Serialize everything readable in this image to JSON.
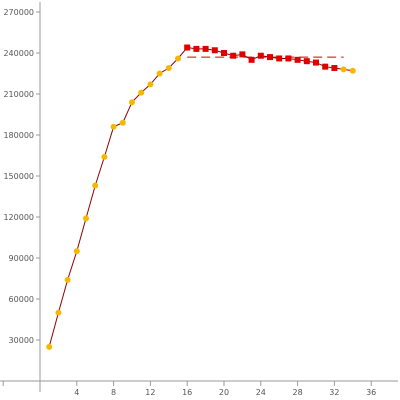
{
  "colors": {
    "background": "#ffffff",
    "axis": "#9a9a9a",
    "line": "#8b0000",
    "marker_rise": "#f5b800",
    "marker_plateau": "#e00000",
    "trend_dash": "#cc0000",
    "tick_text": "#555555"
  },
  "chart_data": {
    "type": "line",
    "title": "",
    "xlabel": "",
    "ylabel": "",
    "xlim": [
      -4,
      39
    ],
    "ylim": [
      0,
      285000
    ],
    "grid": false,
    "x_ticks": [
      {
        "value": 4,
        "label": "4"
      },
      {
        "value": 8,
        "label": "8"
      },
      {
        "value": 12,
        "label": "12"
      },
      {
        "value": 16,
        "label": "16"
      },
      {
        "value": 20,
        "label": "20"
      },
      {
        "value": 24,
        "label": "24"
      },
      {
        "value": 28,
        "label": "28"
      },
      {
        "value": 32,
        "label": "32"
      },
      {
        "value": 36,
        "label": "36"
      }
    ],
    "y_ticks": [
      {
        "value": 30000,
        "label": "30000"
      },
      {
        "value": 60000,
        "label": "60000"
      },
      {
        "value": 90000,
        "label": "90000"
      },
      {
        "value": 120000,
        "label": "120000"
      },
      {
        "value": 150000,
        "label": "150000"
      },
      {
        "value": 180000,
        "label": "180000"
      },
      {
        "value": 210000,
        "label": "210000"
      },
      {
        "value": 240000,
        "label": "240000"
      },
      {
        "value": 270000,
        "label": "270000"
      }
    ],
    "series": [
      {
        "points": [
          {
            "x": 1,
            "y": 25000,
            "group": "rise"
          },
          {
            "x": 2,
            "y": 50000,
            "group": "rise"
          },
          {
            "x": 3,
            "y": 74000,
            "group": "rise"
          },
          {
            "x": 4,
            "y": 95000,
            "group": "rise"
          },
          {
            "x": 5,
            "y": 119000,
            "group": "rise"
          },
          {
            "x": 6,
            "y": 143000,
            "group": "rise"
          },
          {
            "x": 7,
            "y": 164000,
            "group": "rise"
          },
          {
            "x": 8,
            "y": 186000,
            "group": "rise"
          },
          {
            "x": 9,
            "y": 189000,
            "group": "rise"
          },
          {
            "x": 10,
            "y": 204000,
            "group": "rise"
          },
          {
            "x": 11,
            "y": 211000,
            "group": "rise"
          },
          {
            "x": 12,
            "y": 217000,
            "group": "rise"
          },
          {
            "x": 13,
            "y": 225000,
            "group": "rise"
          },
          {
            "x": 14,
            "y": 229000,
            "group": "rise"
          },
          {
            "x": 15,
            "y": 236000,
            "group": "rise"
          },
          {
            "x": 16,
            "y": 244000,
            "group": "plateau"
          },
          {
            "x": 17,
            "y": 243000,
            "group": "plateau"
          },
          {
            "x": 18,
            "y": 243000,
            "group": "plateau"
          },
          {
            "x": 19,
            "y": 242000,
            "group": "plateau"
          },
          {
            "x": 20,
            "y": 240000,
            "group": "plateau"
          },
          {
            "x": 21,
            "y": 238000,
            "group": "plateau"
          },
          {
            "x": 22,
            "y": 239000,
            "group": "plateau"
          },
          {
            "x": 23,
            "y": 235000,
            "group": "plateau"
          },
          {
            "x": 24,
            "y": 238000,
            "group": "plateau"
          },
          {
            "x": 25,
            "y": 237000,
            "group": "plateau"
          },
          {
            "x": 26,
            "y": 236000,
            "group": "plateau"
          },
          {
            "x": 27,
            "y": 236000,
            "group": "plateau"
          },
          {
            "x": 28,
            "y": 235000,
            "group": "plateau"
          },
          {
            "x": 29,
            "y": 234000,
            "group": "plateau"
          },
          {
            "x": 30,
            "y": 233000,
            "group": "plateau"
          },
          {
            "x": 31,
            "y": 230000,
            "group": "plateau"
          },
          {
            "x": 32,
            "y": 229000,
            "group": "plateau"
          },
          {
            "x": 33,
            "y": 228000,
            "group": "rise"
          },
          {
            "x": 34,
            "y": 227000,
            "group": "rise"
          }
        ]
      }
    ],
    "trend_line": {
      "x_start": 16,
      "x_end": 33,
      "y": 237000,
      "style": "dashed"
    }
  }
}
